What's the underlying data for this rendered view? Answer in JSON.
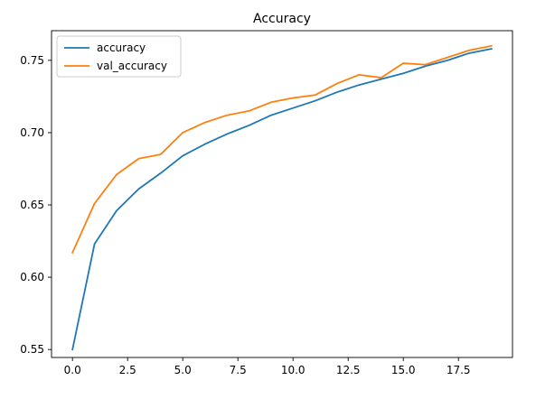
{
  "chart_data": {
    "type": "line",
    "title": "Accuracy",
    "xlabel": "",
    "ylabel": "",
    "x": [
      0,
      1,
      2,
      3,
      4,
      5,
      6,
      7,
      8,
      9,
      10,
      11,
      12,
      13,
      14,
      15,
      16,
      17,
      18,
      19
    ],
    "xlim": [
      -0.95,
      19.95
    ],
    "ylim": [
      0.5445,
      0.7705
    ],
    "x_ticks": [
      0.0,
      2.5,
      5.0,
      7.5,
      10.0,
      12.5,
      15.0,
      17.5
    ],
    "x_tick_labels": [
      "0.0",
      "2.5",
      "5.0",
      "7.5",
      "10.0",
      "12.5",
      "15.0",
      "17.5"
    ],
    "y_ticks": [
      0.55,
      0.6,
      0.65,
      0.7,
      0.75
    ],
    "y_tick_labels": [
      "0.55",
      "0.60",
      "0.65",
      "0.70",
      "0.75"
    ],
    "grid": false,
    "legend_position": "top-left",
    "series": [
      {
        "name": "accuracy",
        "color": "#1f77b4",
        "values": [
          0.55,
          0.623,
          0.646,
          0.661,
          0.672,
          0.684,
          0.692,
          0.699,
          0.705,
          0.712,
          0.717,
          0.722,
          0.728,
          0.733,
          0.737,
          0.741,
          0.746,
          0.75,
          0.755,
          0.758
        ]
      },
      {
        "name": "val_accuracy",
        "color": "#ff7f0e",
        "values": [
          0.617,
          0.651,
          0.671,
          0.682,
          0.685,
          0.7,
          0.707,
          0.712,
          0.715,
          0.721,
          0.724,
          0.726,
          0.734,
          0.74,
          0.738,
          0.748,
          0.747,
          0.752,
          0.757,
          0.76
        ]
      }
    ]
  }
}
